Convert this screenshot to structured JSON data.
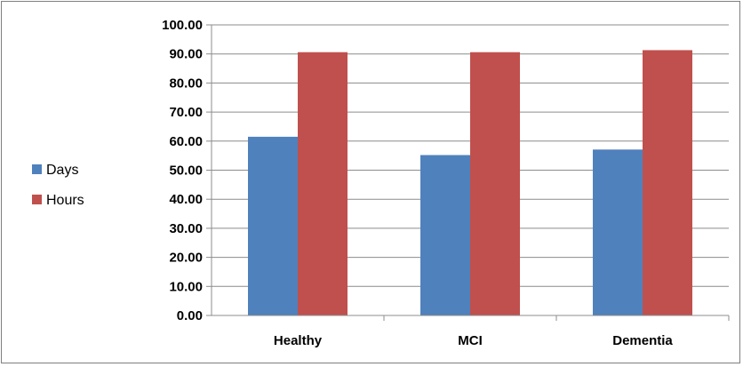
{
  "chart_data": {
    "type": "bar",
    "categories": [
      "Healthy",
      "MCI",
      "Dementia"
    ],
    "series": [
      {
        "name": "Days",
        "values": [
          61.5,
          55.2,
          57.1
        ],
        "color": "#4f81bd"
      },
      {
        "name": "Hours",
        "values": [
          90.6,
          90.6,
          91.3
        ],
        "color": "#c0504d"
      }
    ],
    "ylim": [
      0,
      100
    ],
    "ytick_labels": [
      "0.00",
      "10.00",
      "20.00",
      "30.00",
      "40.00",
      "50.00",
      "60.00",
      "70.00",
      "80.00",
      "90.00",
      "100.00"
    ],
    "grid": true,
    "legend_position": "left",
    "title": "",
    "xlabel": "",
    "ylabel": ""
  }
}
